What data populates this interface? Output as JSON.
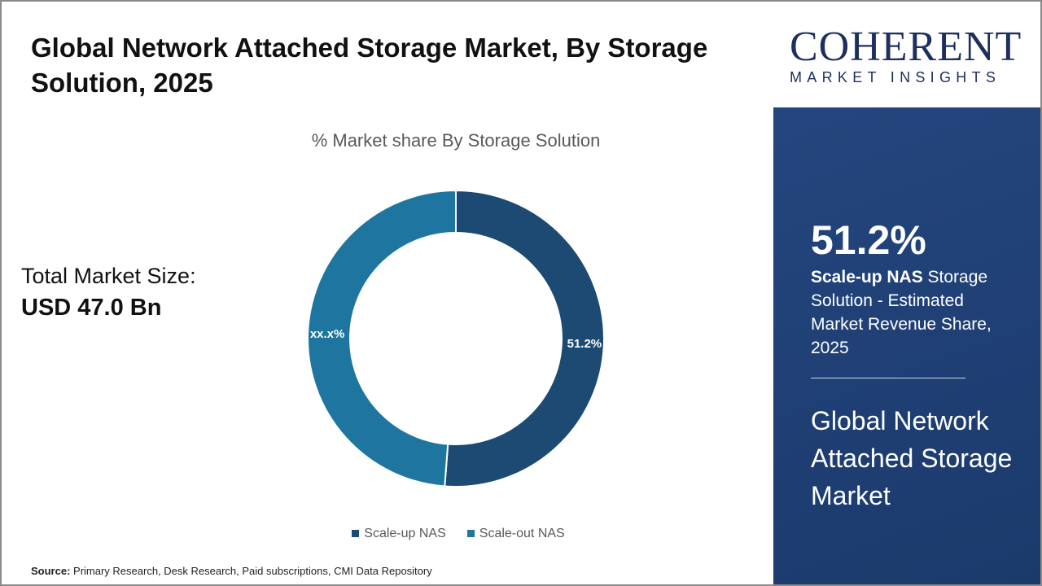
{
  "title": "Global Network Attached Storage Market, By Storage Solution, 2025",
  "total_market": {
    "label": "Total Market Size:",
    "value": "USD 47.0 Bn"
  },
  "source": {
    "label": "Source:",
    "text": " Primary Research, Desk Research, Paid subscriptions, CMI Data Repository"
  },
  "logo": {
    "name": "COHERENT",
    "tagline": "MARKET INSIGHTS"
  },
  "panel": {
    "percent": "51.2%",
    "highlight": "Scale-up NAS",
    "desc": " Storage Solution - Estimated Market Revenue Share, 2025",
    "market": "Global Network Attached Storage Market"
  },
  "chart_data": {
    "type": "pie",
    "subtype": "donut",
    "title": "% Market share By Storage Solution",
    "categories": [
      "Scale-up NAS",
      "Scale-out NAS"
    ],
    "values": [
      51.2,
      48.8
    ],
    "data_labels": [
      "51.2%",
      "xx.x%"
    ],
    "colors": [
      "#1c4a73",
      "#1e76a0"
    ],
    "legend": "bottom"
  }
}
